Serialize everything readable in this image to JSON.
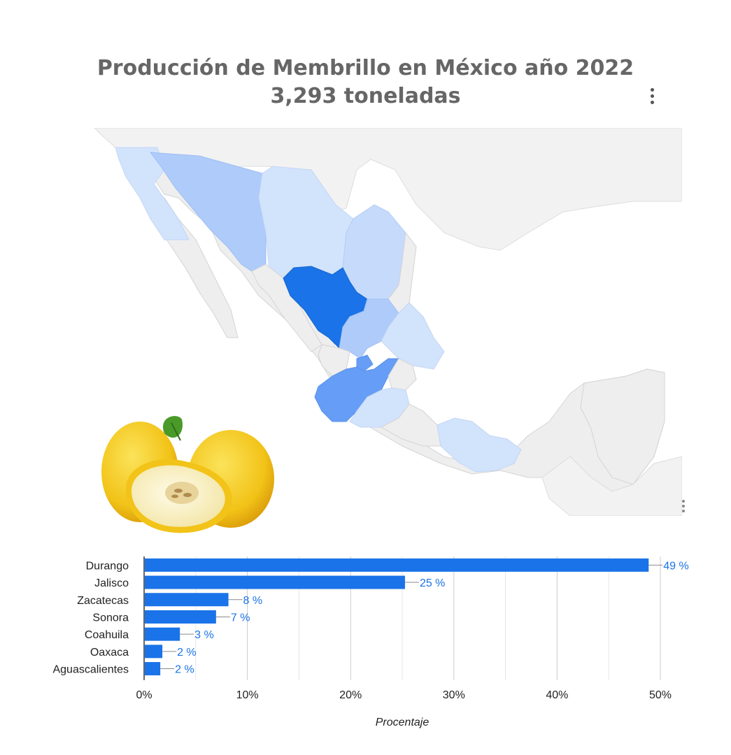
{
  "header": {
    "title_line1": "Producción de Membrillo en México año 2022",
    "title_line2": "3,293 toneladas"
  },
  "colors": {
    "bar": "#1a73e8",
    "label": "#1a73e8",
    "map_base": "#eeeeee",
    "map_light": "#d2e3fc",
    "map_mid": "#aecbfa",
    "map_strong": "#669df6",
    "map_max": "#1a73e8"
  },
  "map": {
    "highlighted_states": {
      "Durango": "max",
      "Jalisco": "strong",
      "Zacatecas": "mid",
      "Sonora": "mid",
      "Coahuila": "light",
      "Chihuahua": "light",
      "Baja California": "light",
      "Oaxaca": "light",
      "Aguascalientes": "strong",
      "San Luis Potosí": "light",
      "Michoacán": "light"
    }
  },
  "chart_data": {
    "type": "bar",
    "orientation": "horizontal",
    "categories": [
      "Durango",
      "Jalisco",
      "Zacatecas",
      "Sonora",
      "Coahuila",
      "Oaxaca",
      "Aguascalientes"
    ],
    "values": [
      48.8,
      25.2,
      8.1,
      6.9,
      3.4,
      1.7,
      1.5
    ],
    "data_labels": [
      "49 %",
      "25 %",
      "8 %",
      "7 %",
      "3 %",
      "2 %",
      "2 %"
    ],
    "xlim": [
      0,
      50
    ],
    "xticks": [
      0,
      10,
      20,
      30,
      40,
      50
    ],
    "xtick_labels": [
      "0%",
      "10%",
      "20%",
      "30%",
      "40%",
      "50%"
    ],
    "xlabel": "Procentaje",
    "grid": true
  }
}
